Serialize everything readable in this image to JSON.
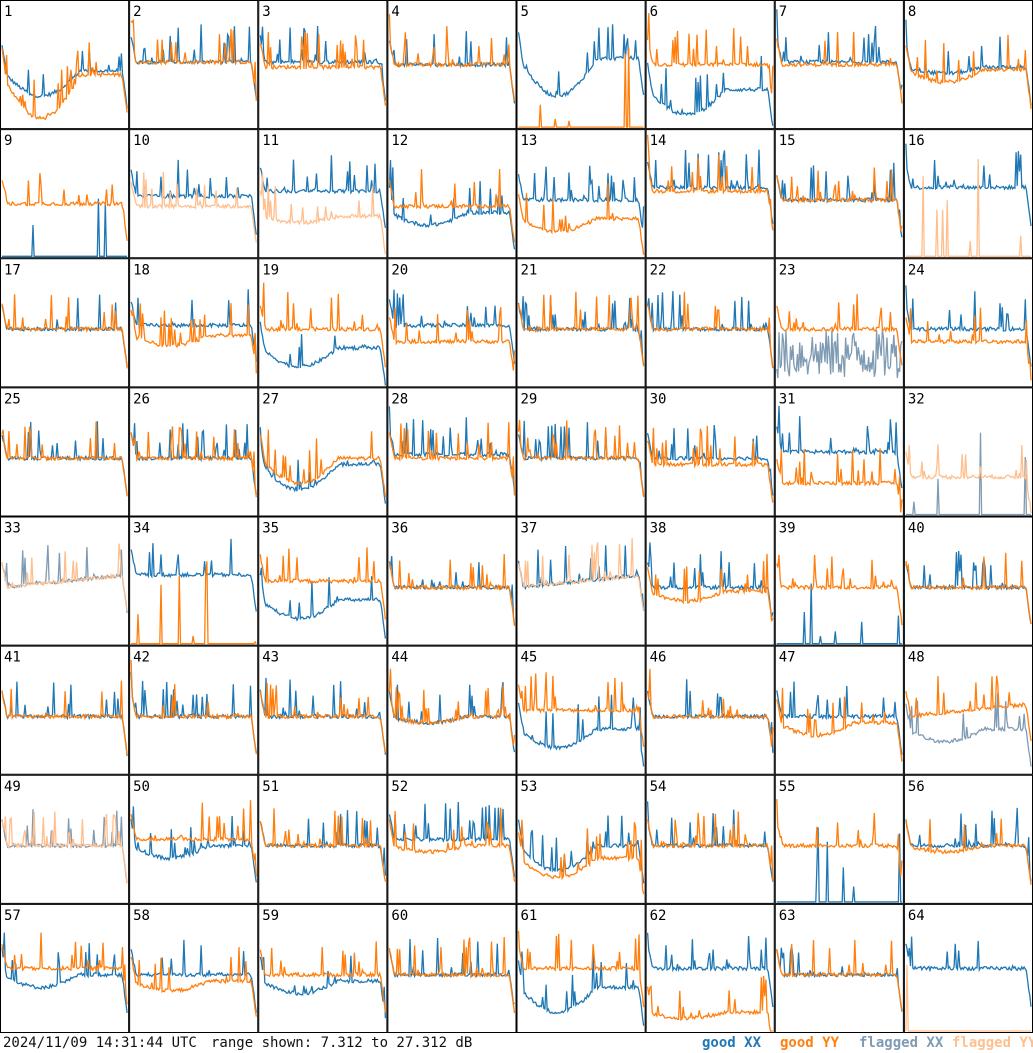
{
  "footer": {
    "timestamp": "2024/11/09 14:31:44 UTC",
    "range_text": "range shown: 7.312 to 27.312 dB"
  },
  "legend": [
    {
      "label": "good XX",
      "color": "#1f77b4"
    },
    {
      "label": "good YY",
      "color": "#ff7f0e"
    },
    {
      "label": "flagged XX",
      "color": "#7f9bb3"
    },
    {
      "label": "flagged YY",
      "color": "#ffbf8e"
    }
  ],
  "chart_data": {
    "type": "line",
    "layout": "8x8 small multiples of per-tile spectra",
    "ylim": [
      7.312,
      27.312
    ],
    "y_unit": "dB",
    "grid": false,
    "legend_position": "bottom-right",
    "series_names": [
      "good XX",
      "good YY",
      "flagged XX",
      "flagged YY"
    ],
    "panels": [
      {
        "label": "1",
        "xx": {
          "status": "good",
          "shape": "dip",
          "level": 0.45,
          "depth": 0.2
        },
        "yy": {
          "status": "good",
          "shape": "dip",
          "level": 0.42,
          "depth": 0.35
        }
      },
      {
        "label": "2",
        "xx": {
          "status": "good",
          "shape": "flat",
          "level": 0.52
        },
        "yy": {
          "status": "good",
          "shape": "flat",
          "level": 0.52
        }
      },
      {
        "label": "3",
        "xx": {
          "status": "good",
          "shape": "flat",
          "level": 0.52
        },
        "yy": {
          "status": "good",
          "shape": "flat",
          "level": 0.48
        }
      },
      {
        "label": "4",
        "xx": {
          "status": "good",
          "shape": "flat",
          "level": 0.5
        },
        "yy": {
          "status": "good",
          "shape": "flat",
          "level": 0.5
        }
      },
      {
        "label": "5",
        "xx": {
          "status": "good",
          "shape": "dip",
          "level": 0.55,
          "depth": 0.3
        },
        "yy": {
          "status": "good",
          "shape": "zero",
          "level": 0.0
        }
      },
      {
        "label": "6",
        "xx": {
          "status": "good",
          "shape": "dip",
          "level": 0.3,
          "depth": 0.2
        },
        "yy": {
          "status": "good",
          "shape": "flat",
          "level": 0.5
        }
      },
      {
        "label": "7",
        "xx": {
          "status": "good",
          "shape": "flat",
          "level": 0.52
        },
        "yy": {
          "status": "good",
          "shape": "flat",
          "level": 0.5
        }
      },
      {
        "label": "8",
        "xx": {
          "status": "good",
          "shape": "dip",
          "level": 0.48,
          "depth": 0.05
        },
        "yy": {
          "status": "good",
          "shape": "dip",
          "level": 0.46,
          "depth": 0.1
        }
      },
      {
        "label": "9",
        "xx": {
          "status": "good",
          "shape": "zero",
          "level": 0.0
        },
        "yy": {
          "status": "good",
          "shape": "flat",
          "level": 0.42
        }
      },
      {
        "label": "10",
        "xx": {
          "status": "good",
          "shape": "flat",
          "level": 0.48
        },
        "yy": {
          "status": "flagged",
          "shape": "flat",
          "level": 0.4
        }
      },
      {
        "label": "11",
        "xx": {
          "status": "good",
          "shape": "flat",
          "level": 0.52
        },
        "yy": {
          "status": "flagged",
          "shape": "dip",
          "level": 0.32,
          "depth": 0.05
        }
      },
      {
        "label": "12",
        "xx": {
          "status": "good",
          "shape": "dip",
          "level": 0.35,
          "depth": 0.1
        },
        "yy": {
          "status": "good",
          "shape": "flat",
          "level": 0.4
        }
      },
      {
        "label": "13",
        "xx": {
          "status": "good",
          "shape": "flat",
          "level": 0.45
        },
        "yy": {
          "status": "good",
          "shape": "dip",
          "level": 0.3,
          "depth": 0.1
        }
      },
      {
        "label": "14",
        "xx": {
          "status": "good",
          "shape": "flat",
          "level": 0.55
        },
        "yy": {
          "status": "good",
          "shape": "flat",
          "level": 0.52
        }
      },
      {
        "label": "15",
        "xx": {
          "status": "good",
          "shape": "flat",
          "level": 0.45
        },
        "yy": {
          "status": "good",
          "shape": "flat",
          "level": 0.45
        }
      },
      {
        "label": "16",
        "xx": {
          "status": "good",
          "shape": "flat",
          "level": 0.55
        },
        "yy": {
          "status": "flagged",
          "shape": "zero",
          "level": 0.0
        }
      },
      {
        "label": "17",
        "xx": {
          "status": "good",
          "shape": "flat",
          "level": 0.45
        },
        "yy": {
          "status": "good",
          "shape": "flat",
          "level": 0.45
        }
      },
      {
        "label": "18",
        "xx": {
          "status": "good",
          "shape": "flat",
          "level": 0.48
        },
        "yy": {
          "status": "good",
          "shape": "dip",
          "level": 0.4,
          "depth": 0.08
        }
      },
      {
        "label": "19",
        "xx": {
          "status": "good",
          "shape": "dip",
          "level": 0.3,
          "depth": 0.15
        },
        "yy": {
          "status": "good",
          "shape": "flat",
          "level": 0.45
        }
      },
      {
        "label": "20",
        "xx": {
          "status": "good",
          "shape": "flat",
          "level": 0.48
        },
        "yy": {
          "status": "good",
          "shape": "flat",
          "level": 0.35
        }
      },
      {
        "label": "21",
        "xx": {
          "status": "good",
          "shape": "flat",
          "level": 0.45
        },
        "yy": {
          "status": "good",
          "shape": "flat",
          "level": 0.45
        }
      },
      {
        "label": "22",
        "xx": {
          "status": "good",
          "shape": "flat",
          "level": 0.45
        },
        "yy": {
          "status": "good",
          "shape": "flat",
          "level": 0.45
        }
      },
      {
        "label": "23",
        "xx": {
          "status": "flagged",
          "shape": "noisy",
          "level": 0.25
        },
        "yy": {
          "status": "good",
          "shape": "flat",
          "level": 0.45
        }
      },
      {
        "label": "24",
        "xx": {
          "status": "good",
          "shape": "flat",
          "level": 0.45
        },
        "yy": {
          "status": "good",
          "shape": "flat",
          "level": 0.35
        }
      },
      {
        "label": "25",
        "xx": {
          "status": "good",
          "shape": "flat",
          "level": 0.45
        },
        "yy": {
          "status": "good",
          "shape": "flat",
          "level": 0.45
        }
      },
      {
        "label": "26",
        "xx": {
          "status": "good",
          "shape": "flat",
          "level": 0.45
        },
        "yy": {
          "status": "good",
          "shape": "flat",
          "level": 0.45
        }
      },
      {
        "label": "27",
        "xx": {
          "status": "good",
          "shape": "dip",
          "level": 0.4,
          "depth": 0.2
        },
        "yy": {
          "status": "good",
          "shape": "dip",
          "level": 0.45,
          "depth": 0.2
        }
      },
      {
        "label": "28",
        "xx": {
          "status": "good",
          "shape": "flat",
          "level": 0.48
        },
        "yy": {
          "status": "good",
          "shape": "flat",
          "level": 0.45
        }
      },
      {
        "label": "29",
        "xx": {
          "status": "good",
          "shape": "flat",
          "level": 0.45
        },
        "yy": {
          "status": "good",
          "shape": "flat",
          "level": 0.45
        }
      },
      {
        "label": "30",
        "xx": {
          "status": "good",
          "shape": "flat",
          "level": 0.45
        },
        "yy": {
          "status": "good",
          "shape": "flat",
          "level": 0.4
        }
      },
      {
        "label": "31",
        "xx": {
          "status": "good",
          "shape": "flat",
          "level": 0.5
        },
        "yy": {
          "status": "good",
          "shape": "flat",
          "level": 0.25
        }
      },
      {
        "label": "32",
        "xx": {
          "status": "flagged",
          "shape": "zero",
          "level": 0.0
        },
        "yy": {
          "status": "flagged",
          "shape": "flat",
          "level": 0.3
        }
      },
      {
        "label": "33",
        "xx": {
          "status": "flagged",
          "shape": "rise",
          "level": 0.45
        },
        "yy": {
          "status": "flagged",
          "shape": "rise",
          "level": 0.45
        }
      },
      {
        "label": "34",
        "xx": {
          "status": "good",
          "shape": "flat",
          "level": 0.55
        },
        "yy": {
          "status": "good",
          "shape": "zero",
          "level": 0.0
        }
      },
      {
        "label": "35",
        "xx": {
          "status": "good",
          "shape": "dip",
          "level": 0.35,
          "depth": 0.15
        },
        "yy": {
          "status": "good",
          "shape": "flat",
          "level": 0.5
        }
      },
      {
        "label": "36",
        "xx": {
          "status": "good",
          "shape": "flat",
          "level": 0.45
        },
        "yy": {
          "status": "good",
          "shape": "flat",
          "level": 0.45
        }
      },
      {
        "label": "37",
        "xx": {
          "status": "good",
          "shape": "rise",
          "level": 0.45
        },
        "yy": {
          "status": "flagged",
          "shape": "rise",
          "level": 0.45
        }
      },
      {
        "label": "38",
        "xx": {
          "status": "good",
          "shape": "flat",
          "level": 0.45
        },
        "yy": {
          "status": "good",
          "shape": "dip",
          "level": 0.42,
          "depth": 0.08
        }
      },
      {
        "label": "39",
        "xx": {
          "status": "good",
          "shape": "zero",
          "level": 0.0
        },
        "yy": {
          "status": "good",
          "shape": "flat",
          "level": 0.45
        }
      },
      {
        "label": "40",
        "xx": {
          "status": "good",
          "shape": "flat",
          "level": 0.45
        },
        "yy": {
          "status": "good",
          "shape": "flat",
          "level": 0.45
        }
      },
      {
        "label": "41",
        "xx": {
          "status": "good",
          "shape": "flat",
          "level": 0.45
        },
        "yy": {
          "status": "good",
          "shape": "flat",
          "level": 0.45
        }
      },
      {
        "label": "42",
        "xx": {
          "status": "good",
          "shape": "flat",
          "level": 0.45
        },
        "yy": {
          "status": "good",
          "shape": "flat",
          "level": 0.45
        }
      },
      {
        "label": "43",
        "xx": {
          "status": "good",
          "shape": "flat",
          "level": 0.45
        },
        "yy": {
          "status": "good",
          "shape": "flat",
          "level": 0.45
        }
      },
      {
        "label": "44",
        "xx": {
          "status": "good",
          "shape": "dip",
          "level": 0.45,
          "depth": 0.05
        },
        "yy": {
          "status": "good",
          "shape": "dip",
          "level": 0.45,
          "depth": 0.05
        }
      },
      {
        "label": "45",
        "xx": {
          "status": "good",
          "shape": "dip",
          "level": 0.35,
          "depth": 0.15
        },
        "yy": {
          "status": "good",
          "shape": "flat",
          "level": 0.5
        }
      },
      {
        "label": "46",
        "xx": {
          "status": "good",
          "shape": "flat",
          "level": 0.45
        },
        "yy": {
          "status": "good",
          "shape": "flat",
          "level": 0.45
        }
      },
      {
        "label": "47",
        "xx": {
          "status": "good",
          "shape": "flat",
          "level": 0.45
        },
        "yy": {
          "status": "good",
          "shape": "dip",
          "level": 0.4,
          "depth": 0.1
        }
      },
      {
        "label": "48",
        "xx": {
          "status": "flagged",
          "shape": "dip",
          "level": 0.35,
          "depth": 0.1
        },
        "yy": {
          "status": "good",
          "shape": "rise",
          "level": 0.45
        }
      },
      {
        "label": "49",
        "xx": {
          "status": "flagged",
          "shape": "flat",
          "level": 0.45
        },
        "yy": {
          "status": "flagged",
          "shape": "flat",
          "level": 0.45
        }
      },
      {
        "label": "50",
        "xx": {
          "status": "good",
          "shape": "dip",
          "level": 0.45,
          "depth": 0.1
        },
        "yy": {
          "status": "good",
          "shape": "flat",
          "level": 0.5
        }
      },
      {
        "label": "51",
        "xx": {
          "status": "good",
          "shape": "flat",
          "level": 0.45
        },
        "yy": {
          "status": "good",
          "shape": "flat",
          "level": 0.45
        }
      },
      {
        "label": "52",
        "xx": {
          "status": "good",
          "shape": "flat",
          "level": 0.5
        },
        "yy": {
          "status": "good",
          "shape": "dip",
          "level": 0.45,
          "depth": 0.05
        }
      },
      {
        "label": "53",
        "xx": {
          "status": "good",
          "shape": "dip",
          "level": 0.45,
          "depth": 0.2
        },
        "yy": {
          "status": "good",
          "shape": "dip",
          "level": 0.35,
          "depth": 0.15
        }
      },
      {
        "label": "54",
        "xx": {
          "status": "good",
          "shape": "flat",
          "level": 0.45
        },
        "yy": {
          "status": "good",
          "shape": "flat",
          "level": 0.45
        }
      },
      {
        "label": "55",
        "xx": {
          "status": "good",
          "shape": "zero",
          "level": 0.0
        },
        "yy": {
          "status": "good",
          "shape": "flat",
          "level": 0.45
        }
      },
      {
        "label": "56",
        "xx": {
          "status": "good",
          "shape": "flat",
          "level": 0.45
        },
        "yy": {
          "status": "good",
          "shape": "dip",
          "level": 0.45,
          "depth": 0.05
        }
      },
      {
        "label": "57",
        "xx": {
          "status": "good",
          "shape": "dip",
          "level": 0.45,
          "depth": 0.1
        },
        "yy": {
          "status": "good",
          "shape": "flat",
          "level": 0.5
        }
      },
      {
        "label": "58",
        "xx": {
          "status": "good",
          "shape": "flat",
          "level": 0.45
        },
        "yy": {
          "status": "good",
          "shape": "dip",
          "level": 0.4,
          "depth": 0.08
        }
      },
      {
        "label": "59",
        "xx": {
          "status": "good",
          "shape": "dip",
          "level": 0.4,
          "depth": 0.1
        },
        "yy": {
          "status": "good",
          "shape": "flat",
          "level": 0.45
        }
      },
      {
        "label": "60",
        "xx": {
          "status": "good",
          "shape": "flat",
          "level": 0.45
        },
        "yy": {
          "status": "good",
          "shape": "flat",
          "level": 0.45
        }
      },
      {
        "label": "61",
        "xx": {
          "status": "good",
          "shape": "dip",
          "level": 0.35,
          "depth": 0.2
        },
        "yy": {
          "status": "good",
          "shape": "flat",
          "level": 0.5
        }
      },
      {
        "label": "62",
        "xx": {
          "status": "good",
          "shape": "flat",
          "level": 0.5
        },
        "yy": {
          "status": "good",
          "shape": "dip",
          "level": 0.15,
          "depth": 0.05
        }
      },
      {
        "label": "63",
        "xx": {
          "status": "good",
          "shape": "flat",
          "level": 0.45
        },
        "yy": {
          "status": "good",
          "shape": "flat",
          "level": 0.45
        }
      },
      {
        "label": "64",
        "xx": {
          "status": "good",
          "shape": "flat",
          "level": 0.5
        },
        "yy": {
          "status": "flagged",
          "shape": "zero",
          "level": 0.0
        }
      }
    ]
  }
}
